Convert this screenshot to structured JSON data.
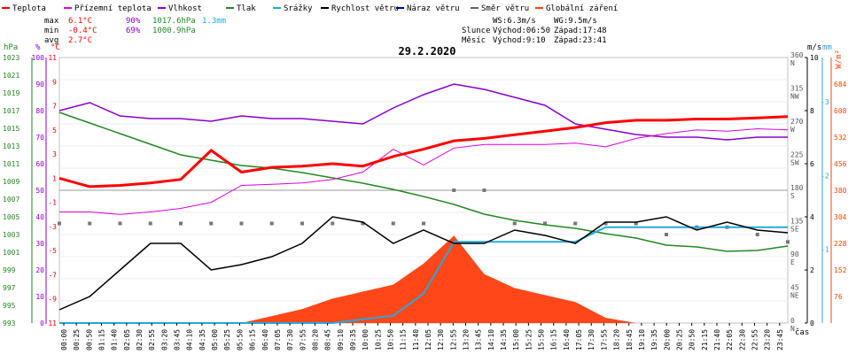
{
  "chart_data": {
    "type": "line",
    "title": "29.2.2020",
    "legend": [
      {
        "name": "Teplota",
        "color": "#ff0000"
      },
      {
        "name": "Přízemní teplota",
        "color": "#dd00dd"
      },
      {
        "name": "Vlhkost",
        "color": "#8800cc"
      },
      {
        "name": "Tlak",
        "color": "#228822"
      },
      {
        "name": "Srážky",
        "color": "#22aadd"
      },
      {
        "name": "Rychlost větru",
        "color": "#000000"
      },
      {
        "name": "Náraz větru",
        "color": "#000088"
      },
      {
        "name": "Směr větru",
        "color": "#666666"
      },
      {
        "name": "Globální záření",
        "color": "#ff4400"
      }
    ],
    "stats": {
      "max_label": "max",
      "min_label": "min",
      "avg_label": "avg",
      "temp_max": "6.1°C",
      "temp_min": "-0.4°C",
      "temp_avg": "2.7°C",
      "hum_max": "90%",
      "hum_min": "69%",
      "press_max": "1017.6hPa",
      "press_min": "1000.9hPa",
      "rain": "1.3mm",
      "wind": "WS:6.3m/s",
      "gust": "WG:9.5m/s",
      "sun_label": "Slunce",
      "sunrise": "Východ:06:50",
      "sunset": "Západ:17:48",
      "moon_label": "Měsíc",
      "moonrise": "Východ:9:10",
      "moonset": "Západ:23:41"
    },
    "axes": {
      "hpa": {
        "label": "hPa",
        "color": "#228822",
        "ticks": [
          993,
          995,
          997,
          999,
          1001,
          1003,
          1005,
          1007,
          1009,
          1011,
          1013,
          1015,
          1017,
          1019,
          1021,
          1023
        ]
      },
      "pct": {
        "label": "%",
        "color": "#8800cc",
        "ticks": [
          0,
          10,
          20,
          30,
          40,
          50,
          60,
          70,
          80,
          90,
          100
        ]
      },
      "degc": {
        "label": "°C",
        "color": "#ff0000",
        "ticks": [
          -11,
          -9,
          -7,
          -5,
          -3,
          -1,
          1,
          3,
          5,
          7,
          9,
          11
        ]
      },
      "dir": {
        "ticks": [
          "0",
          "45",
          "90",
          "135",
          "180",
          "225",
          "270",
          "315",
          "360"
        ],
        "names": [
          "N",
          "NE",
          "E",
          "SE",
          "S",
          "SW",
          "W",
          "NW",
          "N"
        ]
      },
      "ms": {
        "label": "m/s",
        "color": "#000000",
        "ticks": [
          "0",
          "2",
          "4",
          "6",
          "8",
          "10"
        ]
      },
      "mm": {
        "label": "mm",
        "color": "#22aadd",
        "ticks": [
          "-1",
          "-2",
          "-3"
        ]
      },
      "wm2": {
        "label": "W/m²",
        "color": "#ff4400",
        "ticks": [
          "76",
          "152",
          "228",
          "304",
          "380",
          "456",
          "532",
          "608",
          "684"
        ]
      },
      "x_label": "čas",
      "x_ticks": [
        "00:00",
        "00:25",
        "00:50",
        "01:15",
        "01:40",
        "02:05",
        "02:30",
        "02:55",
        "03:20",
        "03:45",
        "04:10",
        "04:35",
        "05:00",
        "05:25",
        "05:50",
        "06:15",
        "06:40",
        "07:05",
        "07:30",
        "07:55",
        "08:20",
        "08:45",
        "09:10",
        "09:35",
        "10:00",
        "10:25",
        "10:50",
        "11:15",
        "11:40",
        "12:05",
        "12:30",
        "12:55",
        "13:20",
        "13:45",
        "14:10",
        "14:35",
        "15:00",
        "15:25",
        "15:50",
        "16:15",
        "16:40",
        "17:05",
        "17:30",
        "17:55",
        "18:20",
        "18:45",
        "19:10",
        "19:35",
        "20:00",
        "20:25",
        "20:50",
        "21:15",
        "21:40",
        "22:05",
        "22:30",
        "22:55",
        "23:20",
        "23:45"
      ]
    },
    "series_hourly": {
      "hours": [
        0,
        1,
        2,
        3,
        4,
        5,
        6,
        7,
        8,
        9,
        10,
        11,
        12,
        13,
        14,
        15,
        16,
        17,
        18,
        19,
        20,
        21,
        22,
        23,
        24
      ],
      "temperature_c": [
        1.0,
        0.3,
        0.4,
        0.6,
        0.9,
        3.3,
        1.5,
        1.9,
        2.0,
        2.2,
        2.0,
        2.8,
        3.4,
        4.1,
        4.3,
        4.6,
        4.9,
        5.2,
        5.6,
        5.8,
        5.8,
        5.9,
        5.9,
        6.0,
        6.1
      ],
      "ground_temperature_c": [
        -1.8,
        -1.8,
        -2.0,
        -1.8,
        -1.5,
        -1.0,
        0.4,
        0.5,
        0.6,
        0.9,
        1.5,
        3.4,
        2.1,
        3.5,
        3.8,
        3.8,
        3.8,
        3.9,
        3.6,
        4.3,
        4.7,
        5.0,
        4.9,
        5.1,
        5.0
      ],
      "humidity_pct": [
        80,
        83,
        78,
        77,
        77,
        76,
        78,
        77,
        77,
        76,
        75,
        81,
        86,
        90,
        88,
        85,
        82,
        75,
        73,
        71,
        70,
        70,
        69,
        70,
        70
      ],
      "pressure_hpa": [
        1016.8,
        1015.6,
        1014.4,
        1013.2,
        1012.0,
        1011.4,
        1010.8,
        1010.5,
        1010.0,
        1009.4,
        1008.8,
        1008.1,
        1007.3,
        1006.4,
        1005.3,
        1004.6,
        1004.1,
        1003.7,
        1003.1,
        1002.6,
        1001.8,
        1001.6,
        1001.1,
        1001.2,
        1001.7
      ],
      "rain_mm": [
        0,
        0,
        0,
        0,
        0,
        0,
        0,
        0,
        0,
        0,
        0.05,
        0.1,
        0.4,
        1.1,
        1.1,
        1.1,
        1.1,
        1.1,
        1.3,
        1.3,
        1.3,
        1.3,
        1.3,
        1.3,
        1.3
      ],
      "wind_speed_ms": [
        0.5,
        1.0,
        2.0,
        3.0,
        3.0,
        2.0,
        2.2,
        2.5,
        3.0,
        4.0,
        3.8,
        3.0,
        3.5,
        3.0,
        3.0,
        3.5,
        3.3,
        3.0,
        3.8,
        3.8,
        4.0,
        3.5,
        3.8,
        3.5,
        3.4
      ],
      "wind_dir_deg": [
        135,
        135,
        135,
        135,
        135,
        135,
        135,
        135,
        135,
        135,
        135,
        135,
        135,
        180,
        180,
        135,
        135,
        135,
        135,
        135,
        120,
        130,
        130,
        120,
        110
      ],
      "radiation_wm2": [
        0,
        0,
        0,
        0,
        0,
        0,
        0,
        20,
        40,
        70,
        90,
        110,
        170,
        250,
        140,
        100,
        80,
        60,
        15,
        0,
        0,
        0,
        0,
        0,
        0
      ]
    }
  }
}
